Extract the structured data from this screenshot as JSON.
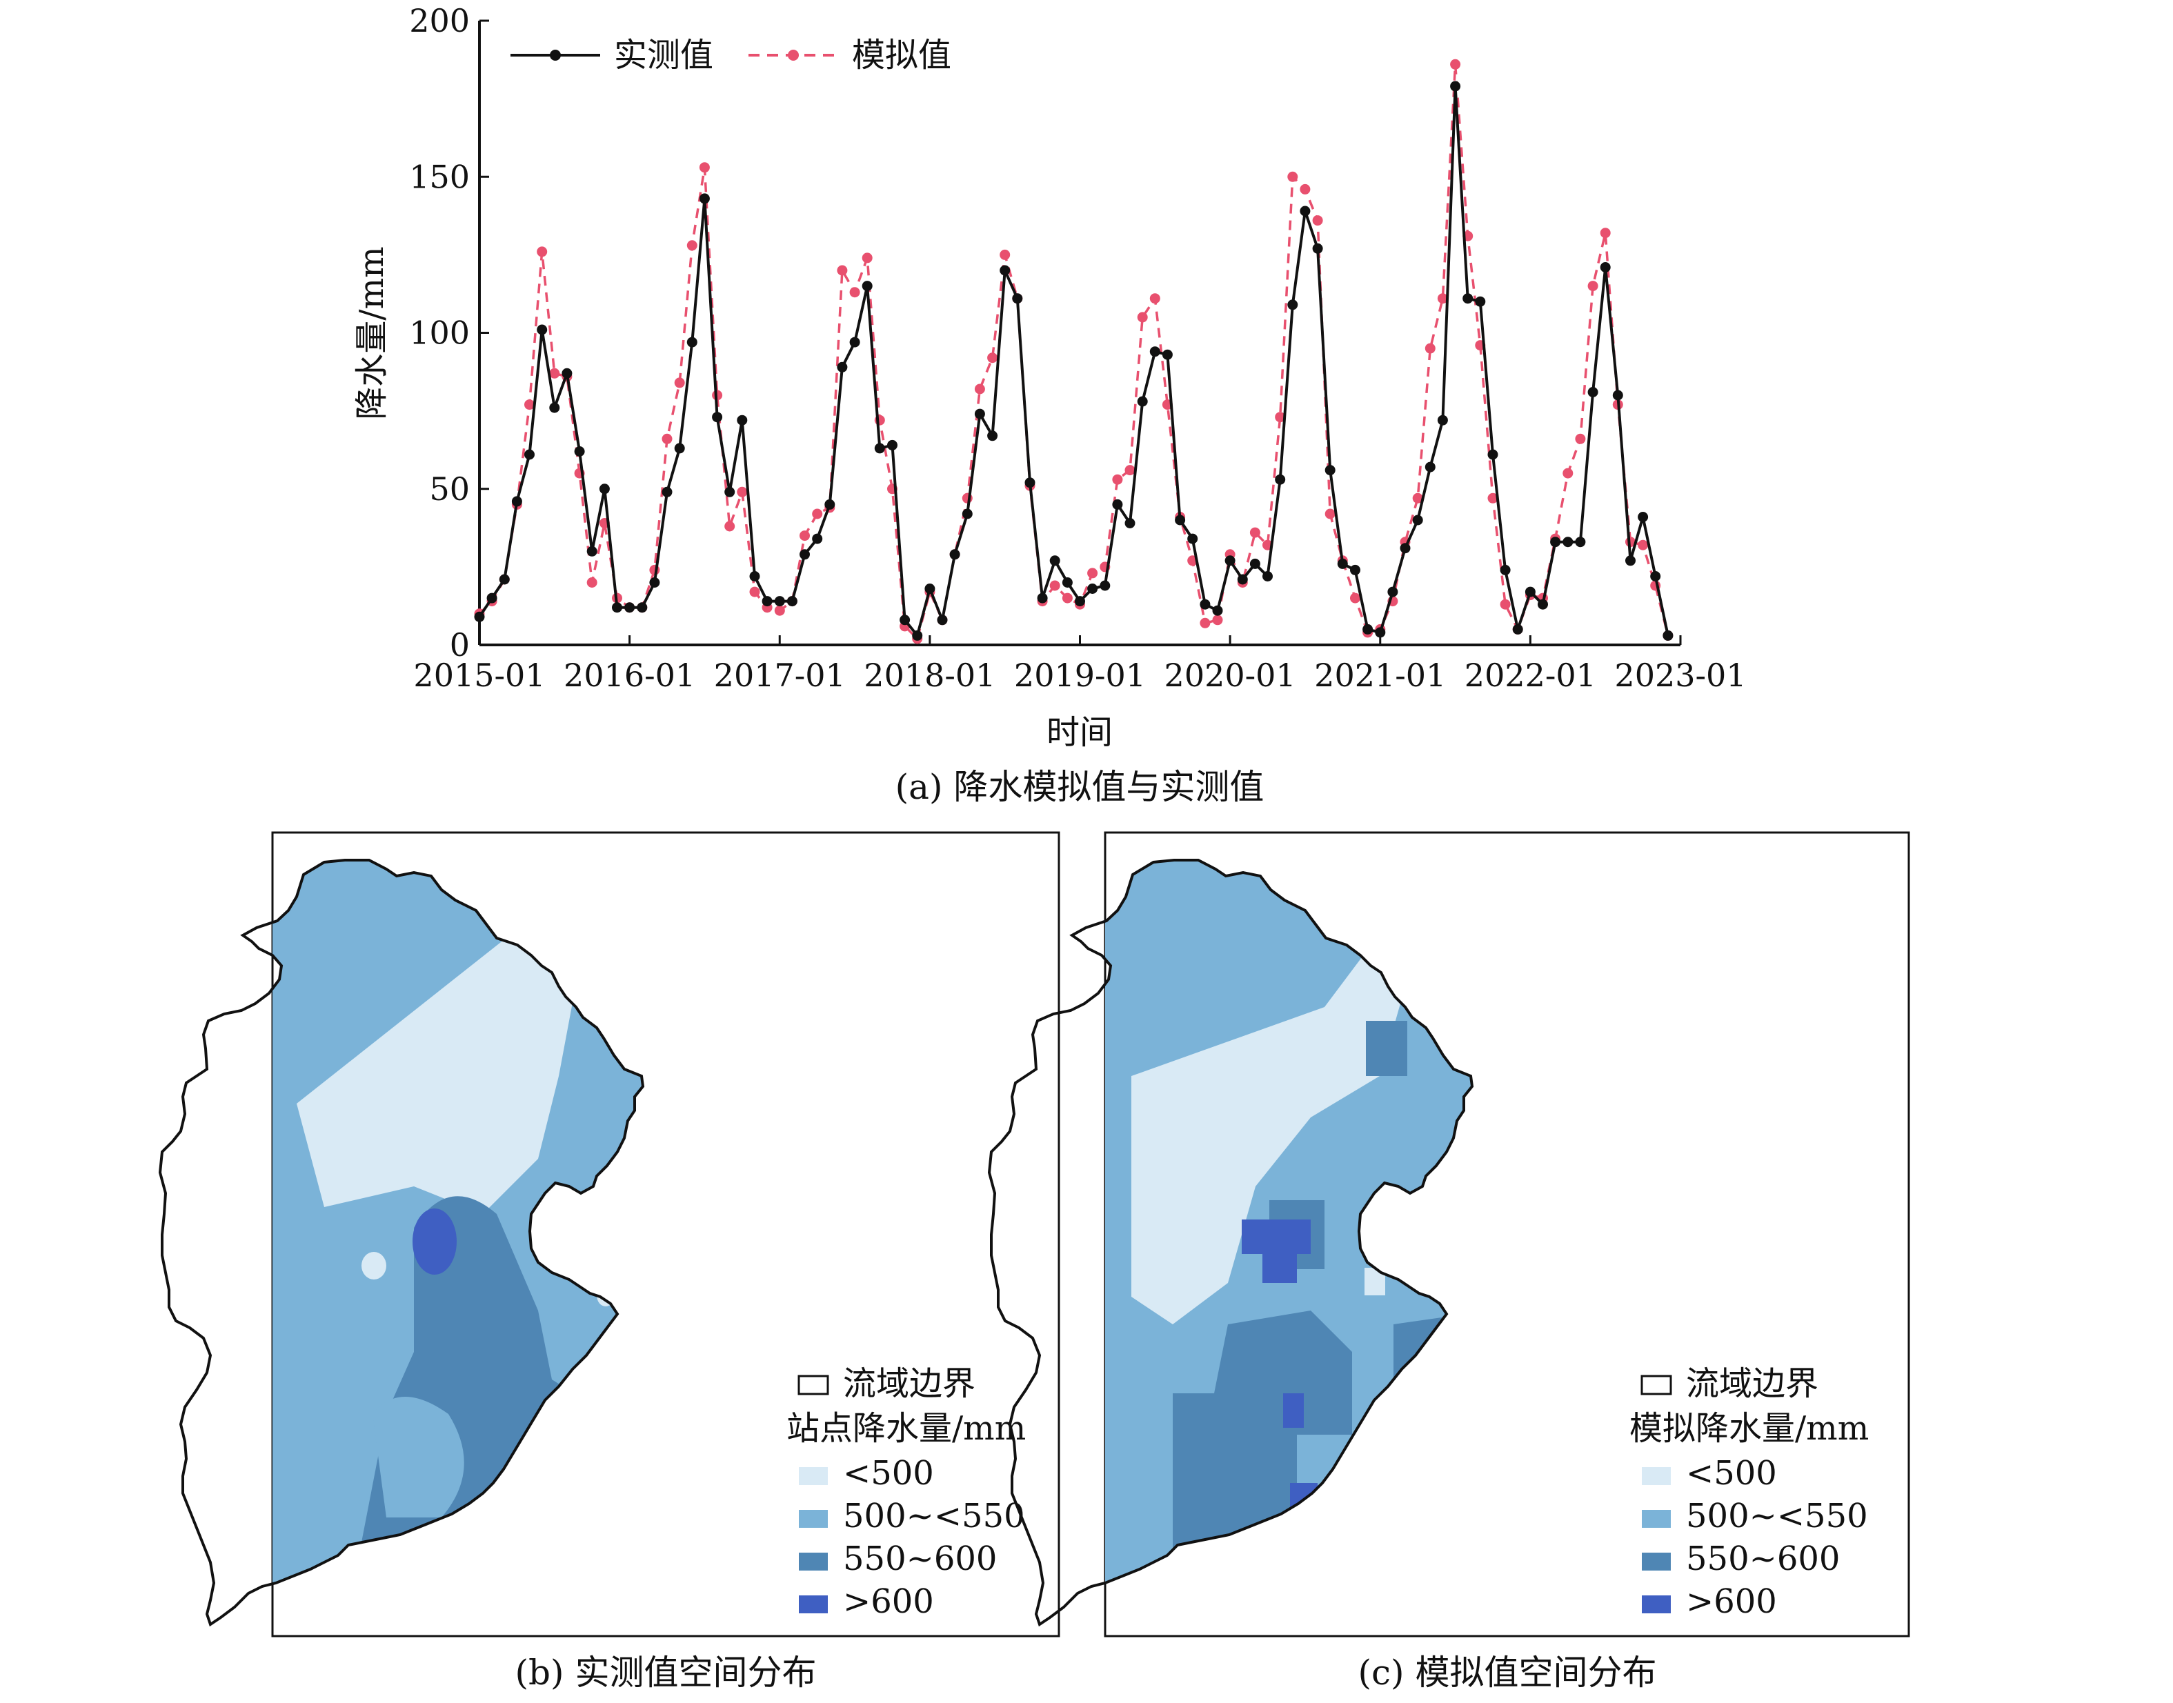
{
  "chart_data": [
    {
      "type": "line",
      "caption": "(a) 降水模拟值与实测值",
      "xlabel": "时间",
      "ylabel": "降水量/mm",
      "ylim": [
        0,
        200
      ],
      "yticks": [
        0,
        50,
        100,
        150,
        200
      ],
      "xlim": [
        "2015-01",
        "2023-01"
      ],
      "xticks": [
        "2015-01",
        "2016-01",
        "2017-01",
        "2018-01",
        "2019-01",
        "2020-01",
        "2021-01",
        "2022-01",
        "2023-01"
      ],
      "legend_position": "top-left",
      "x_start": "2015-01",
      "series": [
        {
          "name": "实测值",
          "color": "#111111",
          "style": "solid",
          "values": [
            9,
            15,
            21,
            46,
            61,
            101,
            76,
            87,
            62,
            30,
            50,
            12,
            12,
            12,
            20,
            49,
            63,
            97,
            143,
            73,
            49,
            72,
            22,
            14,
            14,
            14,
            29,
            34,
            45,
            89,
            97,
            115,
            63,
            64,
            8,
            3,
            18,
            8,
            29,
            42,
            74,
            67,
            120,
            111,
            52,
            15,
            27,
            20,
            14,
            18,
            19,
            45,
            39,
            78,
            94,
            93,
            40,
            34,
            13,
            11,
            27,
            21,
            26,
            22,
            53,
            109,
            139,
            127,
            56,
            26,
            24,
            5,
            4,
            17,
            31,
            40,
            57,
            72,
            179,
            111,
            110,
            61,
            24,
            5,
            17,
            13,
            33,
            33,
            33,
            81,
            121,
            80,
            27,
            41,
            22,
            3
          ]
        },
        {
          "name": "模拟值",
          "color": "#e8506e",
          "style": "dashed",
          "values": [
            10,
            14,
            21,
            45,
            77,
            126,
            87,
            86,
            55,
            20,
            39,
            15,
            12,
            12,
            24,
            66,
            84,
            128,
            153,
            80,
            38,
            49,
            17,
            12,
            11,
            14,
            35,
            42,
            44,
            120,
            113,
            124,
            72,
            50,
            6,
            2,
            17,
            8,
            29,
            47,
            82,
            92,
            125,
            111,
            51,
            14,
            19,
            15,
            13,
            23,
            25,
            53,
            56,
            105,
            111,
            77,
            41,
            27,
            7,
            8,
            29,
            20,
            36,
            32,
            73,
            150,
            146,
            136,
            42,
            27,
            15,
            4,
            5,
            14,
            33,
            47,
            95,
            111,
            186,
            131,
            96,
            47,
            13,
            5,
            16,
            15,
            34,
            55,
            66,
            115,
            132,
            77,
            33,
            32,
            19,
            3
          ]
        }
      ]
    },
    {
      "type": "heatmap",
      "caption": "(b) 实测值空间分布",
      "legend": {
        "boundary": "流域边界",
        "title": "站点降水量/mm",
        "classes": [
          {
            "label": "<500",
            "color": "#d9eaf5"
          },
          {
            "label": "500~<550",
            "color": "#7bb3d8"
          },
          {
            "label": "550~600",
            "color": "#4f86b4"
          },
          {
            "label": ">600",
            "color": "#3f5fc2"
          }
        ]
      }
    },
    {
      "type": "heatmap",
      "caption": "(c) 模拟值空间分布",
      "legend": {
        "boundary": "流域边界",
        "title": "模拟降水量/mm",
        "classes": [
          {
            "label": "<500",
            "color": "#d9eaf5"
          },
          {
            "label": "500~<550",
            "color": "#7bb3d8"
          },
          {
            "label": "550~600",
            "color": "#4f86b4"
          },
          {
            "label": ">600",
            "color": "#3f5fc2"
          }
        ]
      }
    }
  ]
}
